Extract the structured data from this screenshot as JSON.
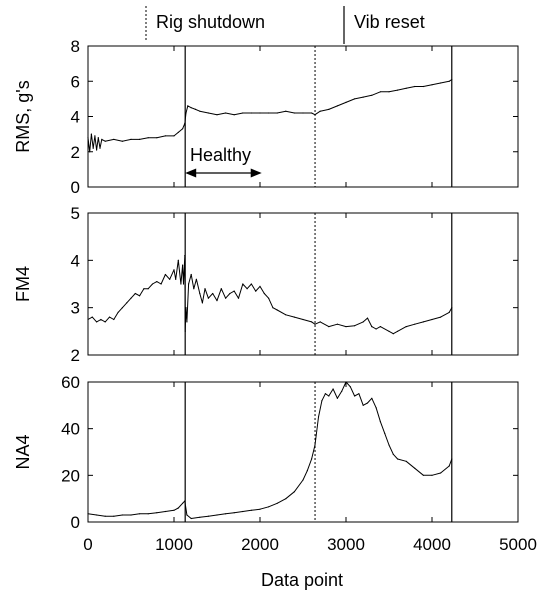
{
  "legend": [
    {
      "label": "Rig shutdown",
      "style": "dotted"
    },
    {
      "label": "Vib reset",
      "style": "solid"
    }
  ],
  "annotation": {
    "label": "Healthy",
    "x_start": 1130,
    "x_end": 2020
  },
  "chart_data": [
    {
      "type": "line",
      "ylabel": "RMS, g's",
      "xlabel": "",
      "xlim": [
        0,
        5000
      ],
      "ylim": [
        0,
        8
      ],
      "yticks": [
        0,
        2,
        4,
        6,
        8
      ],
      "event_lines": {
        "solid": [
          1130,
          4230
        ],
        "dotted": [
          2640
        ]
      },
      "series": [
        {
          "x": [
            0,
            20,
            40,
            60,
            80,
            100,
            120,
            140,
            160,
            200,
            300,
            400,
            500,
            600,
            700,
            800,
            900,
            1000,
            1050,
            1100,
            1125,
            1140,
            1160,
            1200,
            1250,
            1300,
            1400,
            1500,
            1600,
            1700,
            1800,
            1900,
            2000,
            2100,
            2200,
            2300,
            2400,
            2500,
            2600,
            2640,
            2700,
            2800,
            2900,
            3000,
            3100,
            3200,
            3300,
            3400,
            3500,
            3600,
            3700,
            3800,
            3900,
            4000,
            4100,
            4200,
            4230
          ],
          "y": [
            2.8,
            2.0,
            3.0,
            2.2,
            2.9,
            2.1,
            2.8,
            2.2,
            2.7,
            2.6,
            2.7,
            2.6,
            2.7,
            2.7,
            2.8,
            2.8,
            2.9,
            2.9,
            3.1,
            3.3,
            3.6,
            4.2,
            4.6,
            4.5,
            4.4,
            4.3,
            4.2,
            4.1,
            4.2,
            4.1,
            4.2,
            4.2,
            4.2,
            4.2,
            4.2,
            4.3,
            4.2,
            4.2,
            4.2,
            4.1,
            4.3,
            4.4,
            4.6,
            4.8,
            5.0,
            5.1,
            5.2,
            5.4,
            5.4,
            5.5,
            5.6,
            5.7,
            5.7,
            5.8,
            5.9,
            6.0,
            6.1
          ]
        }
      ]
    },
    {
      "type": "line",
      "ylabel": "FM4",
      "xlabel": "",
      "xlim": [
        0,
        5000
      ],
      "ylim": [
        2,
        5
      ],
      "yticks": [
        2,
        3,
        4,
        5
      ],
      "event_lines": {
        "solid": [
          1130,
          4230
        ],
        "dotted": [
          2640
        ]
      },
      "series": [
        {
          "x": [
            0,
            50,
            100,
            150,
            200,
            250,
            300,
            350,
            400,
            450,
            500,
            550,
            600,
            650,
            700,
            750,
            800,
            850,
            900,
            950,
            1000,
            1020,
            1050,
            1080,
            1100,
            1110,
            1125,
            1130,
            1140,
            1150,
            1170,
            1200,
            1230,
            1260,
            1300,
            1330,
            1360,
            1400,
            1450,
            1500,
            1550,
            1600,
            1650,
            1700,
            1750,
            1800,
            1850,
            1900,
            1950,
            2000,
            2050,
            2100,
            2150,
            2200,
            2300,
            2400,
            2500,
            2600,
            2640,
            2700,
            2800,
            2900,
            3000,
            3100,
            3200,
            3250,
            3300,
            3350,
            3400,
            3500,
            3550,
            3600,
            3700,
            3800,
            3900,
            4000,
            4100,
            4200,
            4230
          ],
          "y": [
            2.75,
            2.8,
            2.7,
            2.75,
            2.7,
            2.8,
            2.75,
            2.9,
            3.0,
            3.1,
            3.2,
            3.3,
            3.25,
            3.4,
            3.4,
            3.5,
            3.55,
            3.5,
            3.7,
            3.6,
            3.8,
            3.6,
            4.0,
            3.5,
            3.9,
            3.5,
            4.1,
            2.5,
            3.0,
            2.7,
            3.5,
            3.7,
            3.4,
            3.6,
            3.3,
            3.1,
            3.4,
            3.2,
            3.3,
            3.15,
            3.4,
            3.2,
            3.3,
            3.35,
            3.2,
            3.5,
            3.4,
            3.5,
            3.35,
            3.45,
            3.3,
            3.2,
            3.0,
            2.95,
            2.85,
            2.8,
            2.75,
            2.7,
            2.65,
            2.7,
            2.6,
            2.65,
            2.6,
            2.62,
            2.7,
            2.78,
            2.6,
            2.55,
            2.6,
            2.5,
            2.45,
            2.5,
            2.6,
            2.65,
            2.7,
            2.75,
            2.8,
            2.9,
            3.0
          ]
        }
      ]
    },
    {
      "type": "line",
      "ylabel": "NA4",
      "xlabel": "Data point",
      "xlim": [
        0,
        5000
      ],
      "ylim": [
        0,
        60
      ],
      "yticks": [
        0,
        20,
        40,
        60
      ],
      "xticks": [
        0,
        1000,
        2000,
        3000,
        4000,
        5000
      ],
      "event_lines": {
        "solid": [
          1130,
          4230
        ],
        "dotted": [
          2640
        ]
      },
      "series": [
        {
          "x": [
            0,
            100,
            200,
            300,
            400,
            500,
            600,
            700,
            800,
            900,
            1000,
            1050,
            1100,
            1125,
            1150,
            1200,
            1300,
            1400,
            1500,
            1600,
            1700,
            1800,
            1900,
            2000,
            2100,
            2200,
            2300,
            2400,
            2500,
            2550,
            2600,
            2640,
            2680,
            2720,
            2760,
            2800,
            2850,
            2900,
            2950,
            3000,
            3050,
            3100,
            3150,
            3200,
            3250,
            3300,
            3350,
            3400,
            3450,
            3500,
            3550,
            3600,
            3700,
            3800,
            3900,
            4000,
            4100,
            4200,
            4230
          ],
          "y": [
            3.5,
            3,
            2.5,
            2.5,
            3,
            3,
            3.5,
            3.5,
            4,
            4.5,
            5,
            6,
            8,
            9,
            3,
            1.5,
            2,
            2.5,
            3,
            3.5,
            4,
            4.5,
            5,
            5.5,
            6.5,
            8,
            10,
            13,
            18,
            22,
            27,
            33,
            45,
            52,
            55,
            54,
            57,
            53,
            56,
            60,
            58,
            54,
            55,
            50,
            51,
            53,
            49,
            43,
            38,
            33,
            29,
            27,
            26,
            23,
            20,
            20,
            21,
            24,
            27
          ]
        }
      ]
    }
  ]
}
